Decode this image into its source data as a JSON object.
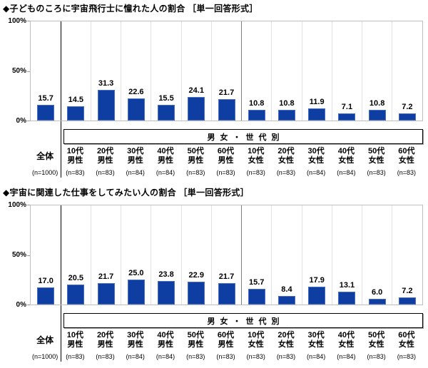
{
  "colors": {
    "bar_blue": "#0F3EA3",
    "total_divider": "#000000",
    "gender_divider": "#7F7F7F",
    "gridline": "#E2E2E2",
    "plot_border": "#BFBFBF"
  },
  "chart_data": [
    {
      "type": "bar",
      "title": "◆子どものころに宇宙飛行士に憧れた人の割合 ［単一回答形式］",
      "group_label": "男女・世代別",
      "categories": [
        "全体",
        "10代男性",
        "20代男性",
        "30代男性",
        "40代男性",
        "50代男性",
        "60代男性",
        "10代女性",
        "20代女性",
        "30代女性",
        "40代女性",
        "50代女性",
        "60代女性"
      ],
      "category_lines": [
        [
          "全体"
        ],
        [
          "10代",
          "男性"
        ],
        [
          "20代",
          "男性"
        ],
        [
          "30代",
          "男性"
        ],
        [
          "40代",
          "男性"
        ],
        [
          "50代",
          "男性"
        ],
        [
          "60代",
          "男性"
        ],
        [
          "10代",
          "女性"
        ],
        [
          "20代",
          "女性"
        ],
        [
          "30代",
          "女性"
        ],
        [
          "40代",
          "女性"
        ],
        [
          "50代",
          "女性"
        ],
        [
          "60代",
          "女性"
        ]
      ],
      "n_labels": [
        "(n=1000)",
        "(n=83)",
        "(n=83)",
        "(n=84)",
        "(n=84)",
        "(n=83)",
        "(n=83)",
        "(n=83)",
        "(n=83)",
        "(n=84)",
        "(n=84)",
        "(n=83)",
        "(n=83)"
      ],
      "values": [
        15.7,
        14.5,
        31.3,
        22.6,
        15.5,
        24.1,
        21.7,
        10.8,
        10.8,
        11.9,
        7.1,
        10.8,
        7.2
      ],
      "ylim": [
        0,
        100
      ],
      "yticks": [
        "0%",
        "50%",
        "100%"
      ],
      "grid": "vertical category separators only",
      "legend": "none",
      "bar_color": "#0F3EA3"
    },
    {
      "type": "bar",
      "title": "◆宇宙に関連した仕事をしてみたい人の割合 ［単一回答形式］",
      "group_label": "男女・世代別",
      "categories": [
        "全体",
        "10代男性",
        "20代男性",
        "30代男性",
        "40代男性",
        "50代男性",
        "60代男性",
        "10代女性",
        "20代女性",
        "30代女性",
        "40代女性",
        "50代女性",
        "60代女性"
      ],
      "category_lines": [
        [
          "全体"
        ],
        [
          "10代",
          "男性"
        ],
        [
          "20代",
          "男性"
        ],
        [
          "30代",
          "男性"
        ],
        [
          "40代",
          "男性"
        ],
        [
          "50代",
          "男性"
        ],
        [
          "60代",
          "男性"
        ],
        [
          "10代",
          "女性"
        ],
        [
          "20代",
          "女性"
        ],
        [
          "30代",
          "女性"
        ],
        [
          "40代",
          "女性"
        ],
        [
          "50代",
          "女性"
        ],
        [
          "60代",
          "女性"
        ]
      ],
      "n_labels": [
        "(n=1000)",
        "(n=83)",
        "(n=83)",
        "(n=84)",
        "(n=84)",
        "(n=83)",
        "(n=83)",
        "(n=83)",
        "(n=83)",
        "(n=84)",
        "(n=84)",
        "(n=83)",
        "(n=83)"
      ],
      "values": [
        17.0,
        20.5,
        21.7,
        25.0,
        23.8,
        22.9,
        21.7,
        15.7,
        8.4,
        17.9,
        13.1,
        6.0,
        7.2
      ],
      "ylim": [
        0,
        100
      ],
      "yticks": [
        "0%",
        "50%",
        "100%"
      ],
      "grid": "vertical category separators only",
      "legend": "none",
      "bar_color": "#0F3EA3"
    }
  ]
}
